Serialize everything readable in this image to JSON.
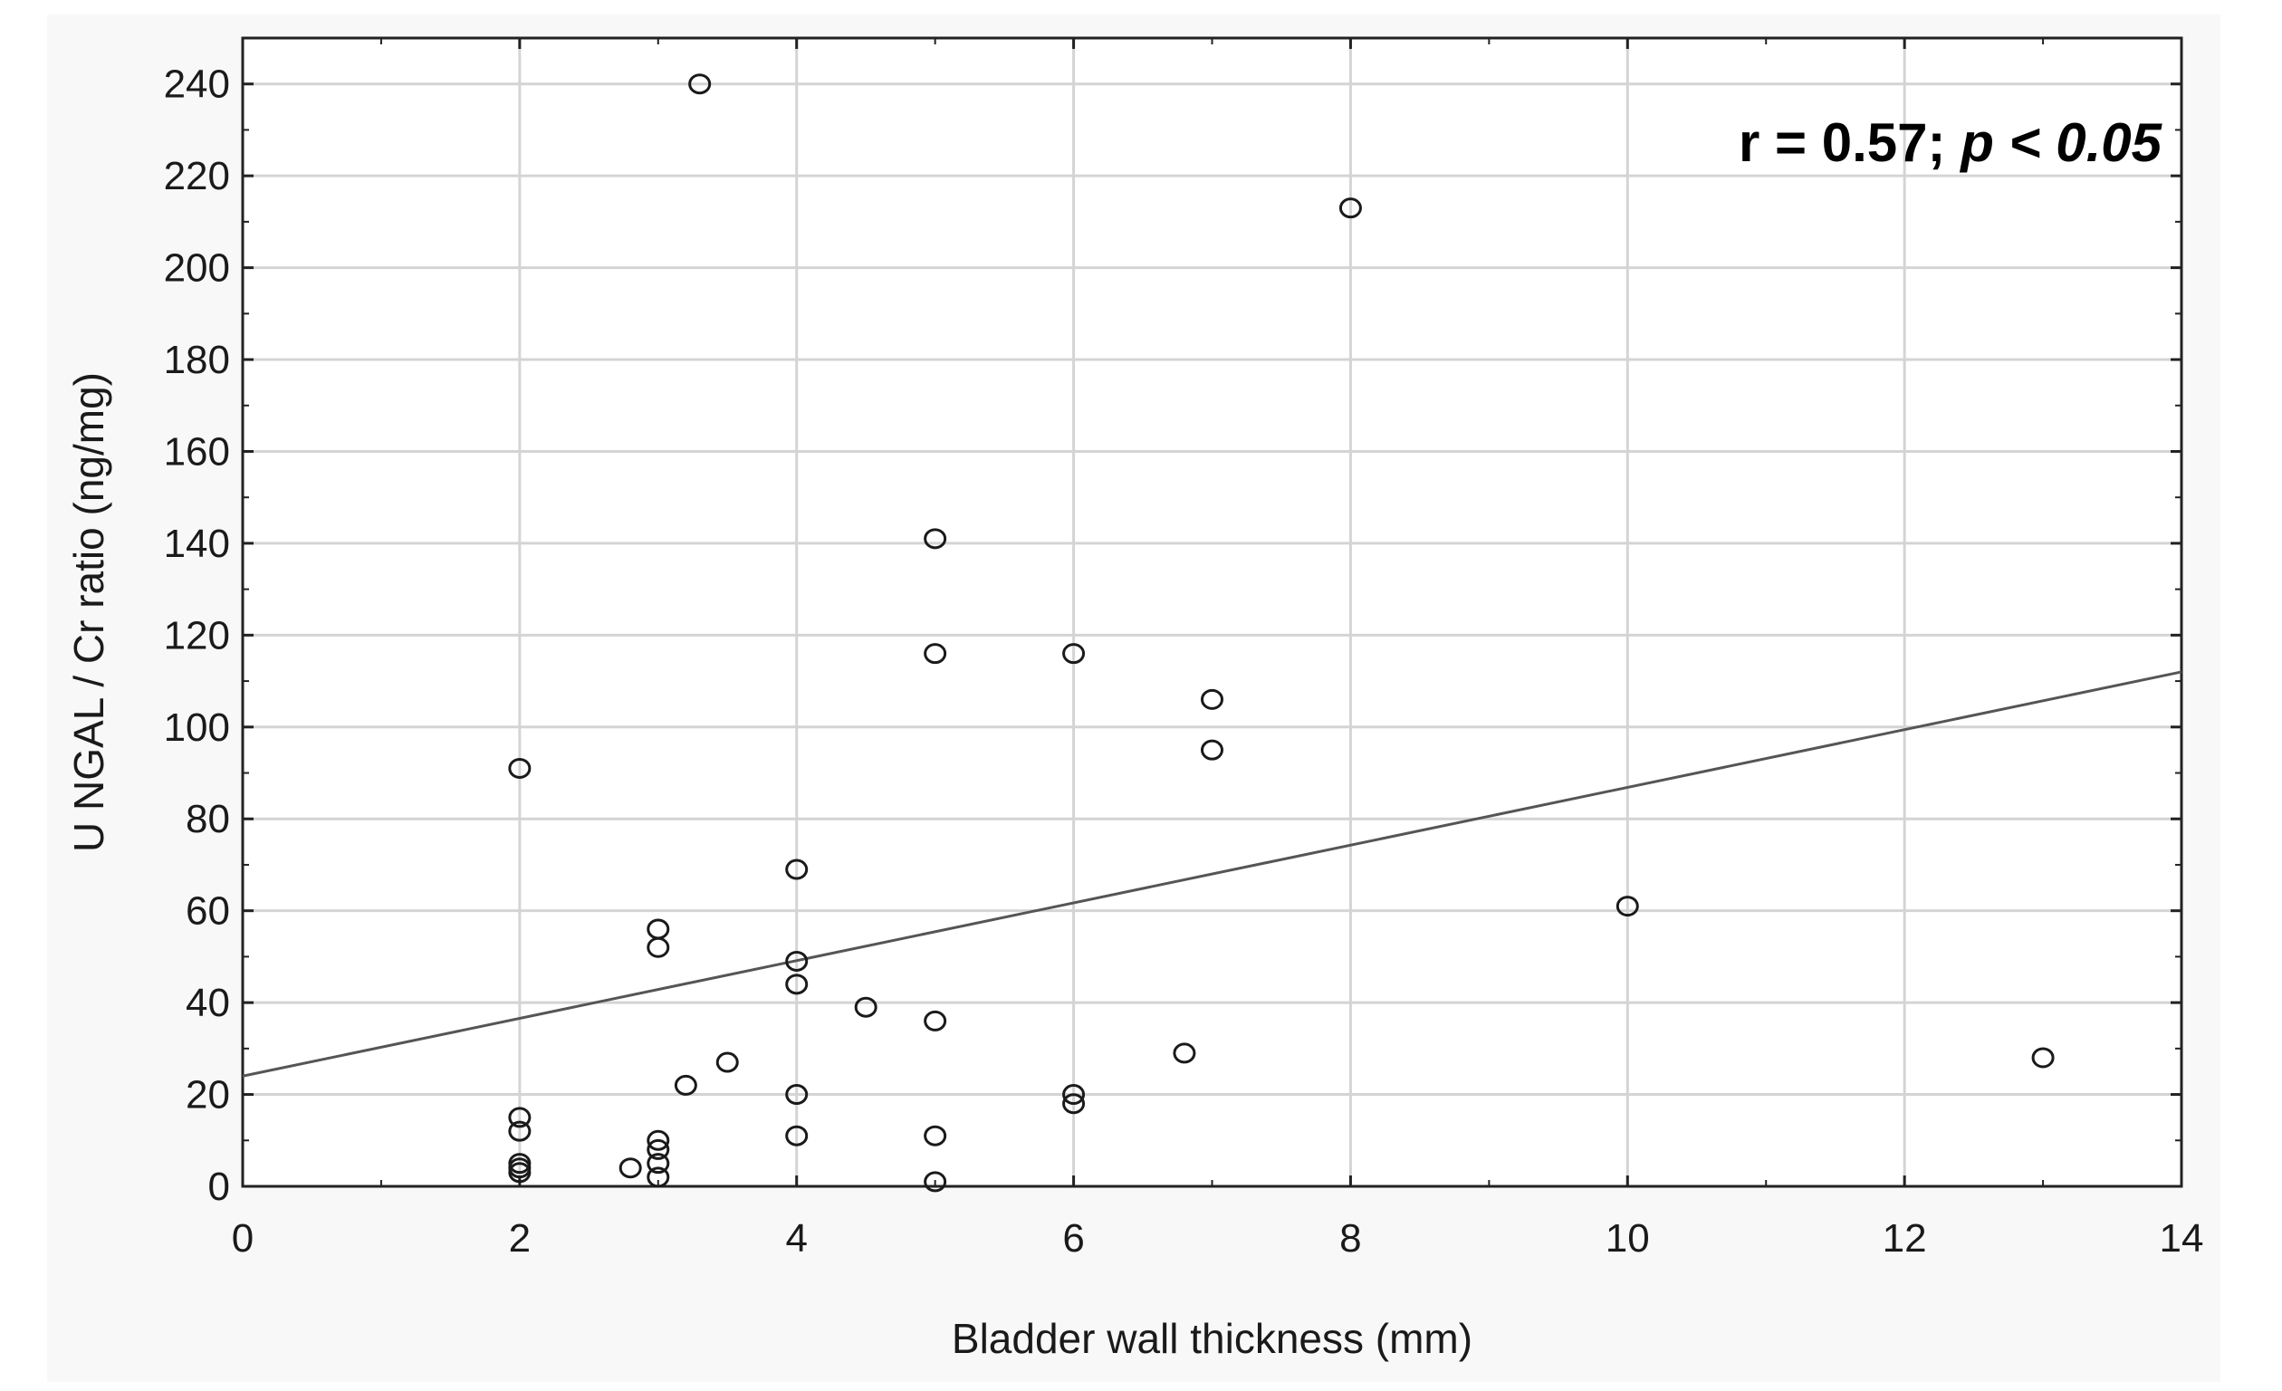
{
  "chart_data": {
    "type": "scatter",
    "xlabel": "Bladder wall thickness (mm)",
    "ylabel": "U NGAL / Cr ratio (ng/mg)",
    "xlim": [
      0,
      14
    ],
    "ylim": [
      0,
      250
    ],
    "x_ticks": [
      "0",
      "2",
      "4",
      "6",
      "8",
      "10",
      "12",
      "14"
    ],
    "y_ticks": [
      "0",
      "20",
      "40",
      "60",
      "80",
      "100",
      "120",
      "140",
      "160",
      "180",
      "200",
      "220",
      "240"
    ],
    "grid": true,
    "marker_color": "#1a1a1a",
    "line_color": "#555555",
    "grid_color": "#d4d4d4",
    "annotation": {
      "prefix": "r = 0.57; ",
      "italic": "p < 0.05",
      "position": "top-right"
    },
    "points": [
      {
        "x": 2,
        "y": 91
      },
      {
        "x": 2,
        "y": 15
      },
      {
        "x": 2,
        "y": 12
      },
      {
        "x": 2,
        "y": 5
      },
      {
        "x": 2,
        "y": 4
      },
      {
        "x": 2,
        "y": 3
      },
      {
        "x": 2.8,
        "y": 4
      },
      {
        "x": 3,
        "y": 56
      },
      {
        "x": 3,
        "y": 52
      },
      {
        "x": 3,
        "y": 10
      },
      {
        "x": 3,
        "y": 8
      },
      {
        "x": 3,
        "y": 5
      },
      {
        "x": 3,
        "y": 2
      },
      {
        "x": 3.2,
        "y": 22
      },
      {
        "x": 3.3,
        "y": 240
      },
      {
        "x": 3.5,
        "y": 27
      },
      {
        "x": 4,
        "y": 69
      },
      {
        "x": 4,
        "y": 49
      },
      {
        "x": 4,
        "y": 44
      },
      {
        "x": 4,
        "y": 20
      },
      {
        "x": 4,
        "y": 11
      },
      {
        "x": 4.5,
        "y": 39
      },
      {
        "x": 5,
        "y": 141
      },
      {
        "x": 5,
        "y": 116
      },
      {
        "x": 5,
        "y": 36
      },
      {
        "x": 5,
        "y": 11
      },
      {
        "x": 5,
        "y": 1
      },
      {
        "x": 6,
        "y": 116
      },
      {
        "x": 6,
        "y": 20
      },
      {
        "x": 6,
        "y": 18
      },
      {
        "x": 6.8,
        "y": 29
      },
      {
        "x": 7,
        "y": 106
      },
      {
        "x": 7,
        "y": 95
      },
      {
        "x": 8,
        "y": 213
      },
      {
        "x": 10,
        "y": 61
      },
      {
        "x": 13,
        "y": 28
      }
    ],
    "regression": {
      "x": [
        0,
        14
      ],
      "y": [
        24,
        112
      ]
    }
  }
}
